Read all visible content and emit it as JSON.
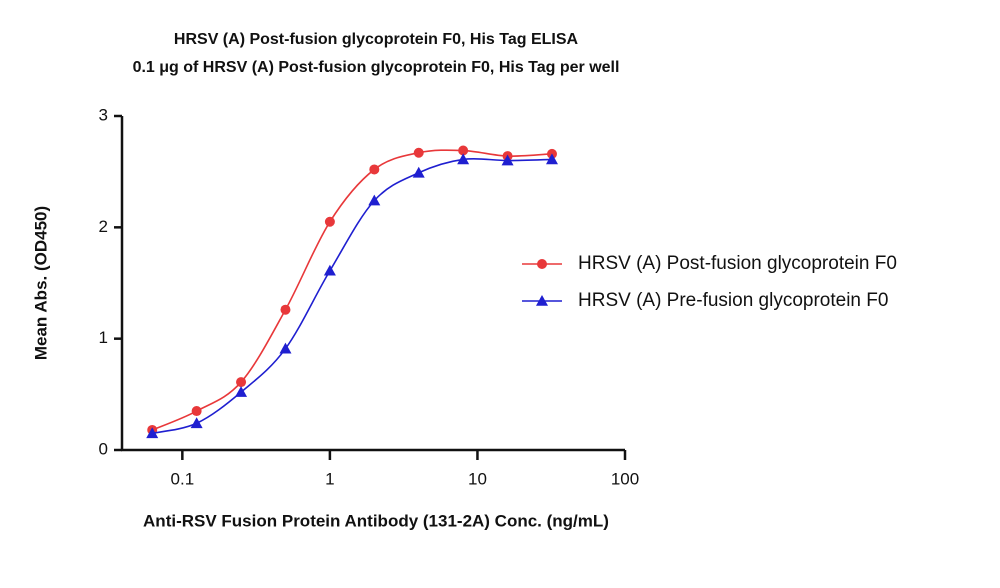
{
  "chart_data": {
    "type": "scatter",
    "title": "HRSV (A) Post-fusion glycoprotein F0, His Tag ELISA",
    "subtitle": "0.1 μg of HRSV (A) Post-fusion glycoprotein F0, His Tag per well",
    "x_label": "Anti-RSV Fusion Protein Antibody (131-2A) Conc. (ng/mL)",
    "y_label": "Mean Abs. (OD450)",
    "x": [
      0.0625,
      0.125,
      0.25,
      0.5,
      1,
      2,
      4,
      8,
      16,
      32
    ],
    "series": [
      {
        "name": "HRSV (A) Post-fusion glycoprotein F0",
        "color": "#e8383a",
        "marker": "circle",
        "values": [
          0.18,
          0.35,
          0.61,
          1.26,
          2.05,
          2.52,
          2.67,
          2.69,
          2.64,
          2.66
        ]
      },
      {
        "name": "HRSV (A) Pre-fusion glycoprotein F0",
        "color": "#1f1fd0",
        "marker": "triangle",
        "values": [
          0.15,
          0.24,
          0.52,
          0.91,
          1.61,
          2.24,
          2.49,
          2.61,
          2.6,
          2.61
        ]
      }
    ],
    "xscale": "log",
    "xlim": [
      0.039,
      100
    ],
    "xticks": [
      0.1,
      1,
      10,
      100
    ],
    "ylim": [
      0,
      3
    ],
    "yticks": [
      0,
      1,
      2,
      3
    ],
    "grid": false,
    "legend": "right"
  }
}
